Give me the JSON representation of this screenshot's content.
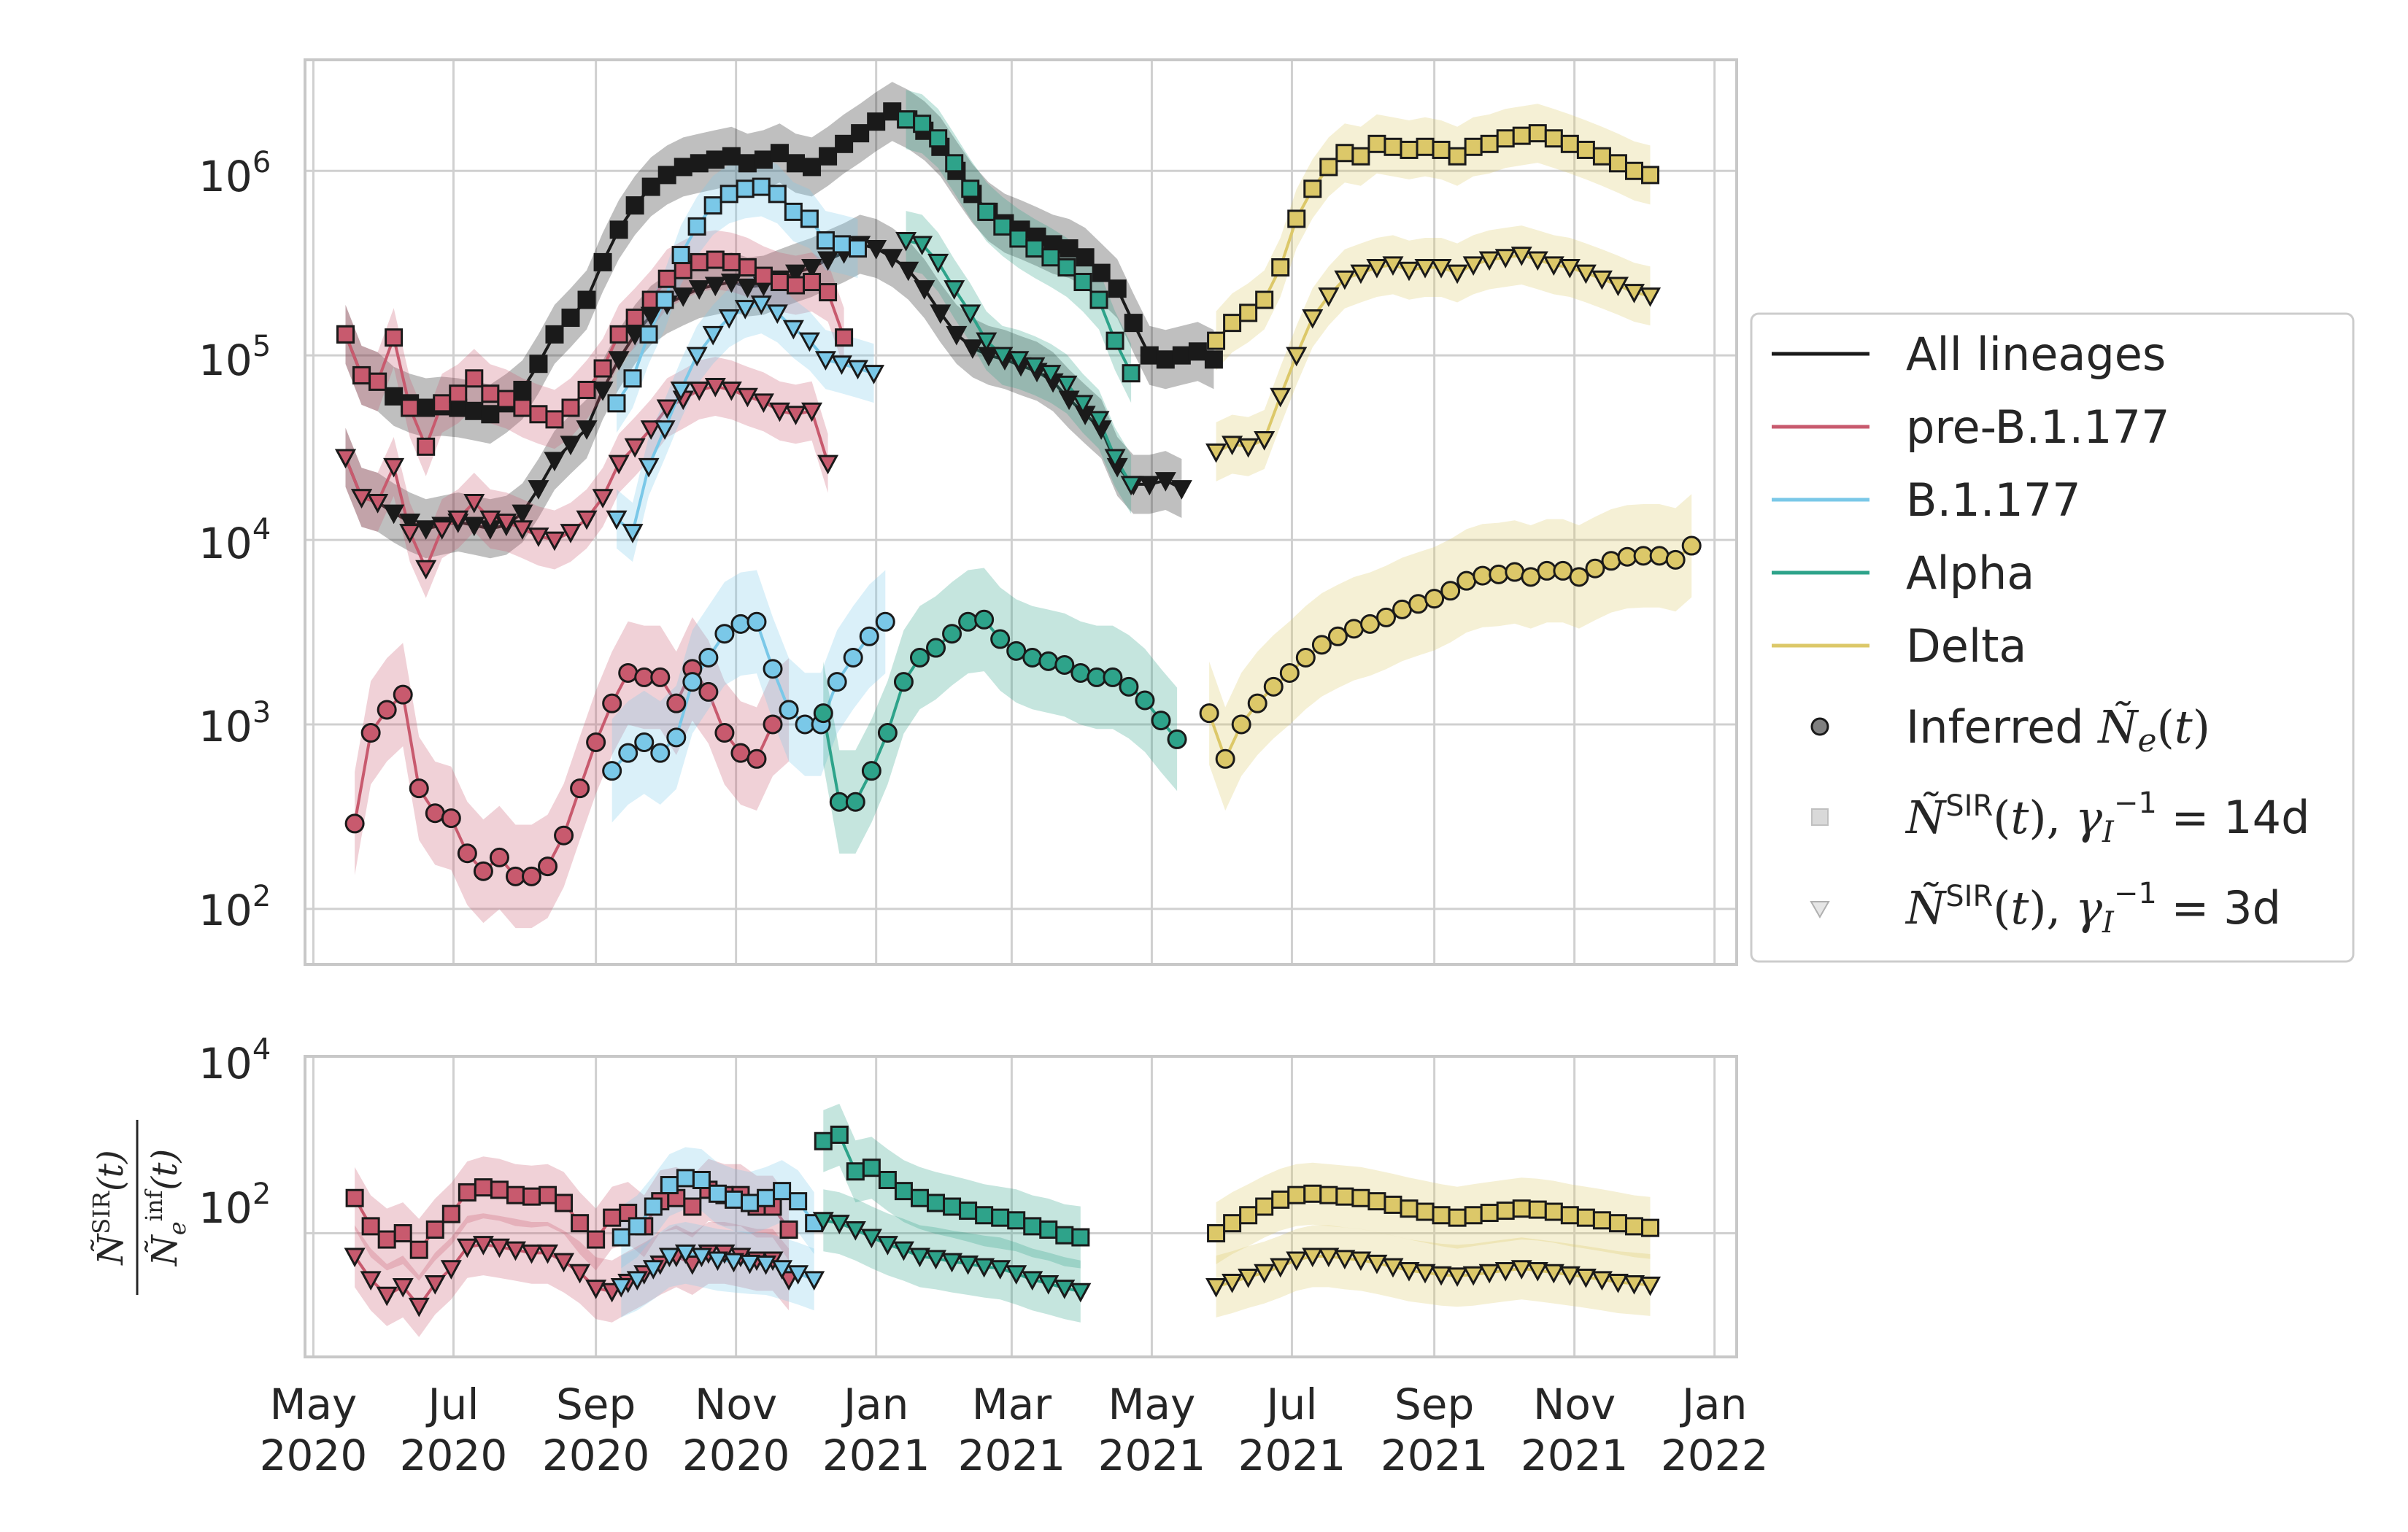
{
  "colors": {
    "all": "#1a1a1a",
    "pre": "#c85a6e",
    "b1177": "#7ac8e8",
    "alpha": "#2ea38a",
    "delta": "#dcc869",
    "grid": "#d0d0d0",
    "frame": "#c8c8c8",
    "text": "#262626"
  },
  "legend": {
    "entries": [
      {
        "key": "all",
        "label": "All lineages"
      },
      {
        "key": "pre",
        "label": "pre-B.1.177"
      },
      {
        "key": "b1177",
        "label": "B.1.177"
      },
      {
        "key": "alpha",
        "label": "Alpha"
      },
      {
        "key": "delta",
        "label": "Delta"
      }
    ],
    "markers": [
      {
        "shape": "circle",
        "label": "Inferred Ñe(t)"
      },
      {
        "shape": "square",
        "label": "ÑSIR(t), γI−1 = 14d"
      },
      {
        "shape": "triangle",
        "label": "ÑSIR(t), γI−1 = 3d"
      }
    ]
  },
  "chart_data": [
    {
      "type": "line",
      "yscale": "log",
      "ylim": [
        50,
        4000000
      ],
      "xlim": [
        "2020-04-28",
        "2022-01-10"
      ],
      "y_tick_labels": [
        "10^2",
        "10^3",
        "10^4",
        "10^5",
        "10^6"
      ],
      "grid": true,
      "legend_placement": "right",
      "series": [
        {
          "lineage": "all",
          "marker": "square",
          "start": "2020-05-15",
          "step_days": 7,
          "values": [
            130000,
            78000,
            72000,
            60000,
            55000,
            52000,
            53000,
            52000,
            50000,
            48000,
            55000,
            65000,
            90000,
            130000,
            160000,
            200000,
            320000,
            480000,
            650000,
            820000,
            950000,
            1050000,
            1100000,
            1150000,
            1200000,
            1100000,
            1150000,
            1250000,
            1100000,
            1050000,
            1200000,
            1400000,
            1600000,
            1850000,
            2100000,
            1900000,
            1650000,
            1350000,
            1000000,
            750000,
            600000,
            520000,
            480000,
            440000,
            400000,
            380000,
            340000,
            280000,
            230000,
            150000,
            100000,
            95000,
            100000,
            105000,
            95000
          ]
        },
        {
          "lineage": "all",
          "marker": "triangle",
          "start": "2020-05-15",
          "step_days": 7,
          "values": [
            28000,
            17000,
            16000,
            14000,
            12500,
            11500,
            12000,
            12500,
            12000,
            11500,
            12000,
            14000,
            19000,
            27000,
            33000,
            40000,
            65000,
            95000,
            130000,
            165000,
            190000,
            210000,
            230000,
            240000,
            250000,
            235000,
            240000,
            260000,
            280000,
            300000,
            330000,
            360000,
            400000,
            380000,
            340000,
            290000,
            230000,
            170000,
            130000,
            110000,
            100000,
            95000,
            88000,
            82000,
            72000,
            58000,
            48000,
            40000,
            25000,
            20000,
            20000,
            21000,
            19000
          ]
        },
        {
          "lineage": "pre",
          "marker": "square",
          "start": "2020-05-15",
          "step_days": 7,
          "values": [
            130000,
            78000,
            72000,
            125000,
            52000,
            32000,
            55000,
            62000,
            75000,
            62000,
            58000,
            52000,
            48000,
            45000,
            52000,
            65000,
            85000,
            130000,
            160000,
            200000,
            260000,
            290000,
            320000,
            330000,
            320000,
            300000,
            270000,
            250000,
            240000,
            250000,
            220000,
            125000
          ]
        },
        {
          "lineage": "pre",
          "marker": "triangle",
          "start": "2020-05-15",
          "step_days": 7,
          "values": [
            28000,
            17000,
            16000,
            25000,
            11000,
            7000,
            11500,
            13000,
            16000,
            13000,
            12500,
            11500,
            10500,
            10000,
            11000,
            13000,
            17000,
            26000,
            32000,
            40000,
            52000,
            58000,
            65000,
            68000,
            65000,
            60000,
            56000,
            50000,
            48000,
            50000,
            26000
          ]
        },
        {
          "lineage": "b1177",
          "marker": "square",
          "start": "2020-09-10",
          "step_days": 7,
          "values": [
            55000,
            75000,
            130000,
            200000,
            350000,
            500000,
            650000,
            750000,
            800000,
            820000,
            750000,
            600000,
            550000,
            420000,
            400000,
            380000
          ]
        },
        {
          "lineage": "b1177",
          "marker": "triangle",
          "start": "2020-09-10",
          "step_days": 7,
          "values": [
            13000,
            11000,
            25000,
            40000,
            65000,
            100000,
            130000,
            160000,
            180000,
            190000,
            170000,
            140000,
            120000,
            95000,
            90000,
            85000,
            80000
          ]
        },
        {
          "lineage": "alpha",
          "marker": "square",
          "start": "2021-01-14",
          "step_days": 7,
          "values": [
            1900000,
            1800000,
            1500000,
            1100000,
            800000,
            600000,
            500000,
            430000,
            380000,
            340000,
            300000,
            250000,
            200000,
            120000,
            80000
          ]
        },
        {
          "lineage": "alpha",
          "marker": "triangle",
          "start": "2021-01-14",
          "step_days": 7,
          "values": [
            420000,
            400000,
            320000,
            230000,
            170000,
            120000,
            100000,
            95000,
            88000,
            80000,
            70000,
            55000,
            45000,
            28000,
            20000
          ]
        },
        {
          "lineage": "delta",
          "marker": "square",
          "start": "2021-05-29",
          "step_days": 7,
          "values": [
            120000,
            150000,
            170000,
            200000,
            300000,
            550000,
            800000,
            1050000,
            1250000,
            1200000,
            1400000,
            1350000,
            1300000,
            1350000,
            1300000,
            1200000,
            1350000,
            1400000,
            1500000,
            1550000,
            1600000,
            1500000,
            1400000,
            1300000,
            1200000,
            1100000,
            1000000,
            950000
          ]
        },
        {
          "lineage": "delta",
          "marker": "triangle",
          "start": "2021-05-29",
          "step_days": 7,
          "values": [
            30000,
            33000,
            32000,
            35000,
            60000,
            100000,
            160000,
            210000,
            260000,
            280000,
            300000,
            310000,
            290000,
            300000,
            300000,
            280000,
            310000,
            330000,
            340000,
            350000,
            330000,
            310000,
            300000,
            280000,
            260000,
            240000,
            220000,
            210000
          ]
        },
        {
          "lineage": "pre",
          "marker": "circle",
          "start": "2020-05-19",
          "step_days": 7,
          "values": [
            290,
            900,
            1200,
            1450,
            450,
            330,
            310,
            200,
            160,
            190,
            150,
            150,
            170,
            250,
            450,
            800,
            1300,
            1900,
            1800,
            1800,
            1300,
            2000,
            1500,
            900,
            700,
            650,
            1000,
            1200
          ]
        },
        {
          "lineage": "b1177",
          "marker": "circle",
          "start": "2020-09-08",
          "step_days": 7,
          "values": [
            560,
            700,
            800,
            700,
            850,
            1700,
            2300,
            3100,
            3500,
            3600,
            2000,
            1200,
            1000,
            1000,
            1700,
            2300,
            3000,
            3600
          ]
        },
        {
          "lineage": "alpha",
          "marker": "circle",
          "start": "2020-12-09",
          "step_days": 7,
          "values": [
            1150,
            380,
            380,
            560,
            900,
            1700,
            2300,
            2600,
            3100,
            3600,
            3700,
            2900,
            2500,
            2300,
            2200,
            2100,
            1900,
            1800,
            1800,
            1600,
            1350,
            1050,
            830
          ]
        },
        {
          "lineage": "delta",
          "marker": "circle",
          "start": "2021-05-26",
          "step_days": 7,
          "values": [
            1150,
            650,
            1000,
            1300,
            1600,
            1900,
            2300,
            2700,
            3000,
            3300,
            3500,
            3800,
            4200,
            4500,
            4800,
            5300,
            6000,
            6400,
            6500,
            6700,
            6300,
            6800,
            6800,
            6300,
            7000,
            7700,
            8100,
            8200,
            8200,
            7800,
            9300
          ]
        }
      ]
    },
    {
      "type": "line",
      "yscale": "log",
      "ylabel": "ÑSIR(t) / Ñeinf(t)",
      "ylim": [
        4,
        10000
      ],
      "xlim": [
        "2020-04-28",
        "2022-01-10"
      ],
      "y_tick_labels": [
        "10^2",
        "10^4"
      ],
      "x_tick_labels": [
        [
          "May",
          "2020"
        ],
        [
          "Jul",
          "2020"
        ],
        [
          "Sep",
          "2020"
        ],
        [
          "Nov",
          "2020"
        ],
        [
          "Jan",
          "2021"
        ],
        [
          "Mar",
          "2021"
        ],
        [
          "May",
          "2021"
        ],
        [
          "Jul",
          "2021"
        ],
        [
          "Sep",
          "2021"
        ],
        [
          "Nov",
          "2021"
        ],
        [
          "Jan",
          "2022"
        ]
      ],
      "series": [
        {
          "lineage": "pre",
          "marker": "square",
          "start": "2020-05-19",
          "step_days": 7,
          "values": [
            250,
            120,
            85,
            100,
            65,
            110,
            165,
            290,
            330,
            310,
            270,
            260,
            270,
            220,
            130,
            85,
            150,
            170,
            120,
            230,
            250,
            200,
            310,
            270,
            270,
            200,
            200,
            110
          ]
        },
        {
          "lineage": "pre",
          "marker": "triangle",
          "start": "2020-05-19",
          "step_days": 7,
          "values": [
            55,
            30,
            20,
            25,
            15,
            27,
            40,
            70,
            75,
            70,
            65,
            60,
            60,
            48,
            36,
            24,
            22,
            28,
            35,
            45,
            55,
            45,
            60,
            60,
            55,
            50,
            50,
            30
          ]
        },
        {
          "lineage": "b1177",
          "marker": "square",
          "start": "2020-09-12",
          "step_days": 7,
          "values": [
            90,
            120,
            200,
            350,
            420,
            400,
            280,
            240,
            220,
            250,
            300,
            230,
            130
          ]
        },
        {
          "lineage": "b1177",
          "marker": "triangle",
          "start": "2020-09-12",
          "step_days": 7,
          "values": [
            25,
            30,
            40,
            55,
            60,
            55,
            50,
            48,
            46,
            45,
            40,
            35,
            30
          ]
        },
        {
          "lineage": "alpha",
          "marker": "square",
          "start": "2020-12-09",
          "step_days": 7,
          "values": [
            1100,
            1300,
            500,
            550,
            400,
            300,
            250,
            220,
            200,
            180,
            160,
            150,
            140,
            120,
            110,
            95,
            90
          ]
        },
        {
          "lineage": "alpha",
          "marker": "triangle",
          "start": "2020-12-09",
          "step_days": 7,
          "values": [
            140,
            130,
            110,
            90,
            75,
            65,
            55,
            52,
            48,
            45,
            42,
            40,
            35,
            30,
            27,
            24,
            22
          ]
        },
        {
          "lineage": "delta",
          "marker": "square",
          "start": "2021-05-29",
          "step_days": 7,
          "values": [
            100,
            130,
            160,
            200,
            240,
            270,
            280,
            270,
            260,
            250,
            230,
            210,
            190,
            175,
            160,
            150,
            160,
            170,
            180,
            190,
            185,
            175,
            160,
            150,
            140,
            130,
            120,
            115
          ]
        },
        {
          "lineage": "delta",
          "marker": "triangle",
          "start": "2021-05-29",
          "step_days": 7,
          "values": [
            25,
            28,
            32,
            36,
            42,
            50,
            55,
            55,
            52,
            50,
            46,
            42,
            38,
            36,
            34,
            33,
            34,
            36,
            38,
            40,
            38,
            36,
            34,
            32,
            30,
            28,
            27,
            26
          ]
        }
      ]
    }
  ]
}
